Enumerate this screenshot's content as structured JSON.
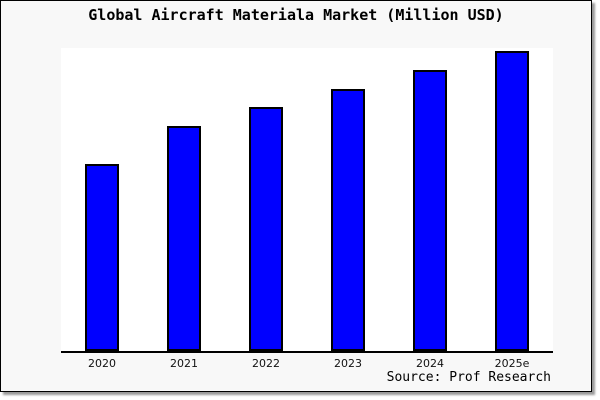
{
  "frame": {
    "background": "#f8f8f8",
    "border_color": "#000000",
    "shadow_color": "#9a9a9a",
    "page_background": "#ffffff"
  },
  "chart_data": {
    "type": "bar",
    "title": "Global Aircraft Materiala Market (Million USD)",
    "categories": [
      "2020",
      "2021",
      "2022",
      "2023",
      "2024",
      "2025e"
    ],
    "values": [
      187,
      225,
      244,
      262,
      281,
      300
    ],
    "values_note": "no y-axis or value labels shown; values are relative bar heights in pixels",
    "xlabel": "",
    "ylabel": "",
    "ylim": null,
    "grid": false,
    "legend": false,
    "y_axis_visible": false,
    "bar_color": "#0000ff",
    "bar_border_color": "#000000",
    "plot_background": "#ffffff",
    "axis_color": "#000000",
    "source_note": "Source: Prof Research"
  }
}
